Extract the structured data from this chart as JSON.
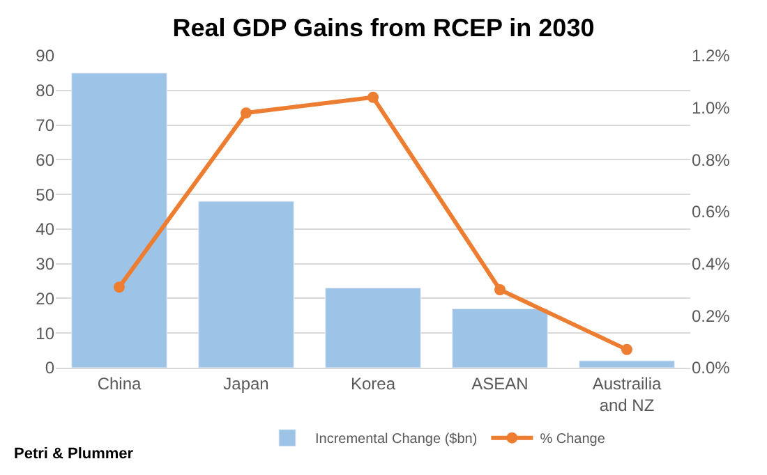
{
  "chart_data": {
    "type": "bar",
    "title": "Real GDP Gains from RCEP in 2030",
    "categories": [
      "China",
      "Japan",
      "Korea",
      "ASEAN",
      "Austrailia and NZ"
    ],
    "series": [
      {
        "name": "Incremental Change ($bn)",
        "color": "#9dc3e6",
        "values": [
          85,
          48,
          23,
          17,
          2
        ]
      },
      {
        "name": "% Change",
        "color": "#ed7d31",
        "type": "line",
        "axis": "y2",
        "marker": "circle",
        "values": [
          0.31,
          0.98,
          1.04,
          0.3,
          0.07
        ]
      }
    ],
    "ylim": [
      0,
      90
    ],
    "yticks": [
      0,
      10,
      20,
      30,
      40,
      50,
      60,
      70,
      80,
      90
    ],
    "y2lim": [
      0,
      1.2
    ],
    "y2ticks": [
      {
        "value": 0,
        "label": "0.0%"
      },
      {
        "value": 0.2,
        "label": "0.2%"
      },
      {
        "value": 0.4,
        "label": "0.4%"
      },
      {
        "value": 0.6,
        "label": "0.6%"
      },
      {
        "value": 0.8,
        "label": "0.8%"
      },
      {
        "value": 1.0,
        "label": "1.0%"
      },
      {
        "value": 1.2,
        "label": "1.2%"
      }
    ],
    "grid": "y",
    "legend": "bottom",
    "annotations": [
      "Petri & Plummer"
    ]
  }
}
